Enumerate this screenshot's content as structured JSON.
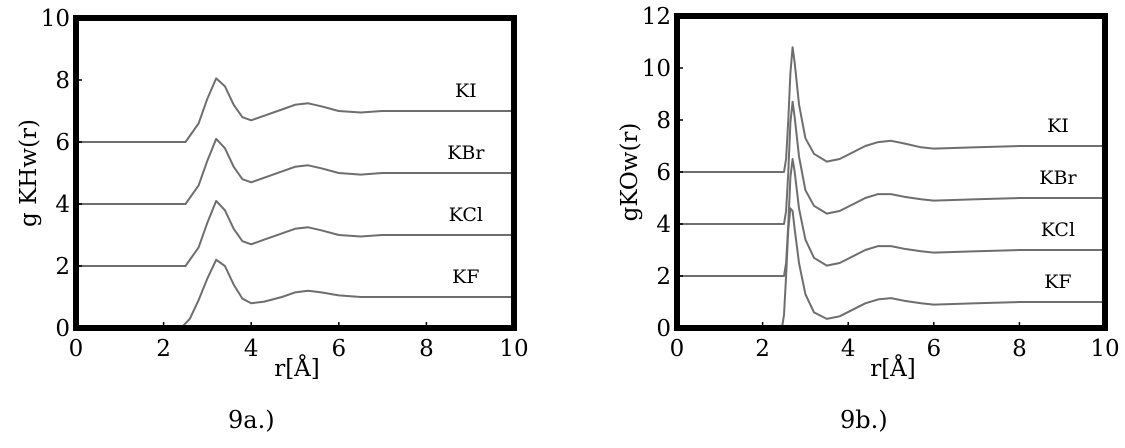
{
  "chart_data": [
    {
      "type": "line",
      "caption": "9a.)",
      "xlabel": "r[Å]",
      "ylabel": "g KHw(r)",
      "xlim": [
        0,
        10
      ],
      "ylim": [
        0,
        10
      ],
      "xticks": [
        0,
        2,
        4,
        6,
        8,
        10
      ],
      "yticks": [
        0,
        2,
        4,
        6,
        8,
        10
      ],
      "grid": false,
      "series": [
        {
          "name": "KI",
          "offset": 6,
          "x": [
            0,
            2.5,
            2.8,
            3.0,
            3.2,
            3.4,
            3.6,
            3.8,
            4.0,
            4.3,
            4.7,
            5.0,
            5.3,
            5.6,
            6.0,
            6.5,
            7.0,
            8.0,
            9.0,
            10.0
          ],
          "y": [
            6.0,
            6.0,
            6.6,
            7.4,
            8.05,
            7.8,
            7.2,
            6.8,
            6.7,
            6.85,
            7.05,
            7.2,
            7.25,
            7.15,
            7.0,
            6.95,
            7.0,
            7.0,
            7.0,
            7.0
          ]
        },
        {
          "name": "KBr",
          "offset": 4,
          "x": [
            0,
            2.5,
            2.8,
            3.0,
            3.2,
            3.4,
            3.6,
            3.8,
            4.0,
            4.3,
            4.7,
            5.0,
            5.3,
            5.6,
            6.0,
            6.5,
            7.0,
            8.0,
            9.0,
            10.0
          ],
          "y": [
            4.0,
            4.0,
            4.6,
            5.4,
            6.1,
            5.8,
            5.2,
            4.8,
            4.7,
            4.85,
            5.05,
            5.2,
            5.25,
            5.15,
            5.0,
            4.95,
            5.0,
            5.0,
            5.0,
            5.0
          ]
        },
        {
          "name": "KCl",
          "offset": 2,
          "x": [
            0,
            2.5,
            2.8,
            3.0,
            3.2,
            3.4,
            3.6,
            3.8,
            4.0,
            4.3,
            4.7,
            5.0,
            5.3,
            5.6,
            6.0,
            6.5,
            7.0,
            8.0,
            9.0,
            10.0
          ],
          "y": [
            2.0,
            2.0,
            2.6,
            3.4,
            4.1,
            3.8,
            3.2,
            2.8,
            2.7,
            2.85,
            3.05,
            3.2,
            3.25,
            3.15,
            3.0,
            2.95,
            3.0,
            3.0,
            3.0,
            3.0
          ]
        },
        {
          "name": "KF",
          "offset": 0,
          "x": [
            2.4,
            2.6,
            2.8,
            3.0,
            3.2,
            3.4,
            3.6,
            3.8,
            4.0,
            4.3,
            4.7,
            5.0,
            5.3,
            5.6,
            6.0,
            6.5,
            7.0,
            8.0,
            9.0,
            10.0
          ],
          "y": [
            0.0,
            0.3,
            0.9,
            1.6,
            2.2,
            2.0,
            1.4,
            0.95,
            0.8,
            0.85,
            1.0,
            1.15,
            1.2,
            1.15,
            1.05,
            1.0,
            1.0,
            1.0,
            1.0,
            1.0
          ]
        }
      ]
    },
    {
      "type": "line",
      "caption": "9b.)",
      "xlabel": "r[Å]",
      "ylabel": "gKOw(r)",
      "xlim": [
        0,
        10
      ],
      "ylim": [
        0,
        12
      ],
      "xticks": [
        0,
        2,
        4,
        6,
        8,
        10
      ],
      "yticks": [
        0,
        2,
        4,
        6,
        8,
        10,
        12
      ],
      "grid": false,
      "series": [
        {
          "name": "KI",
          "offset": 6,
          "x": [
            0,
            2.5,
            2.55,
            2.6,
            2.65,
            2.7,
            2.75,
            2.85,
            3.0,
            3.2,
            3.5,
            3.8,
            4.1,
            4.4,
            4.7,
            5.0,
            5.3,
            5.7,
            6.0,
            7.0,
            8.0,
            9.0,
            10.0
          ],
          "y": [
            6.0,
            6.0,
            6.5,
            8.0,
            9.8,
            10.8,
            10.2,
            8.6,
            7.3,
            6.7,
            6.4,
            6.5,
            6.75,
            7.0,
            7.15,
            7.2,
            7.1,
            6.95,
            6.9,
            6.95,
            7.0,
            7.0,
            7.0
          ]
        },
        {
          "name": "KBr",
          "offset": 4,
          "x": [
            0,
            2.5,
            2.55,
            2.6,
            2.65,
            2.7,
            2.75,
            2.85,
            3.0,
            3.2,
            3.5,
            3.8,
            4.1,
            4.4,
            4.7,
            5.0,
            5.3,
            5.7,
            6.0,
            7.0,
            8.0,
            9.0,
            10.0
          ],
          "y": [
            4.0,
            4.0,
            4.5,
            6.0,
            7.9,
            8.7,
            8.1,
            6.6,
            5.3,
            4.7,
            4.4,
            4.5,
            4.75,
            5.0,
            5.15,
            5.15,
            5.05,
            4.95,
            4.9,
            4.95,
            5.0,
            5.0,
            5.0
          ]
        },
        {
          "name": "KCl",
          "offset": 2,
          "x": [
            0,
            2.5,
            2.55,
            2.6,
            2.65,
            2.7,
            2.75,
            2.85,
            3.0,
            3.2,
            3.5,
            3.8,
            4.1,
            4.4,
            4.7,
            5.0,
            5.3,
            5.7,
            6.0,
            7.0,
            8.0,
            9.0,
            10.0
          ],
          "y": [
            2.0,
            2.0,
            2.5,
            4.0,
            5.8,
            6.5,
            6.0,
            4.6,
            3.4,
            2.7,
            2.4,
            2.5,
            2.75,
            3.0,
            3.15,
            3.15,
            3.05,
            2.95,
            2.9,
            2.95,
            3.0,
            3.0,
            3.0
          ]
        },
        {
          "name": "KF",
          "offset": 0,
          "x": [
            2.45,
            2.5,
            2.55,
            2.6,
            2.65,
            2.7,
            2.75,
            2.85,
            3.0,
            3.2,
            3.5,
            3.8,
            4.1,
            4.4,
            4.7,
            5.0,
            5.3,
            5.7,
            6.0,
            7.0,
            8.0,
            9.0,
            10.0
          ],
          "y": [
            0.0,
            0.5,
            2.0,
            3.8,
            4.6,
            4.5,
            3.8,
            2.5,
            1.3,
            0.6,
            0.35,
            0.45,
            0.7,
            0.95,
            1.1,
            1.15,
            1.05,
            0.95,
            0.9,
            0.95,
            1.0,
            1.0,
            1.0
          ]
        }
      ]
    }
  ]
}
